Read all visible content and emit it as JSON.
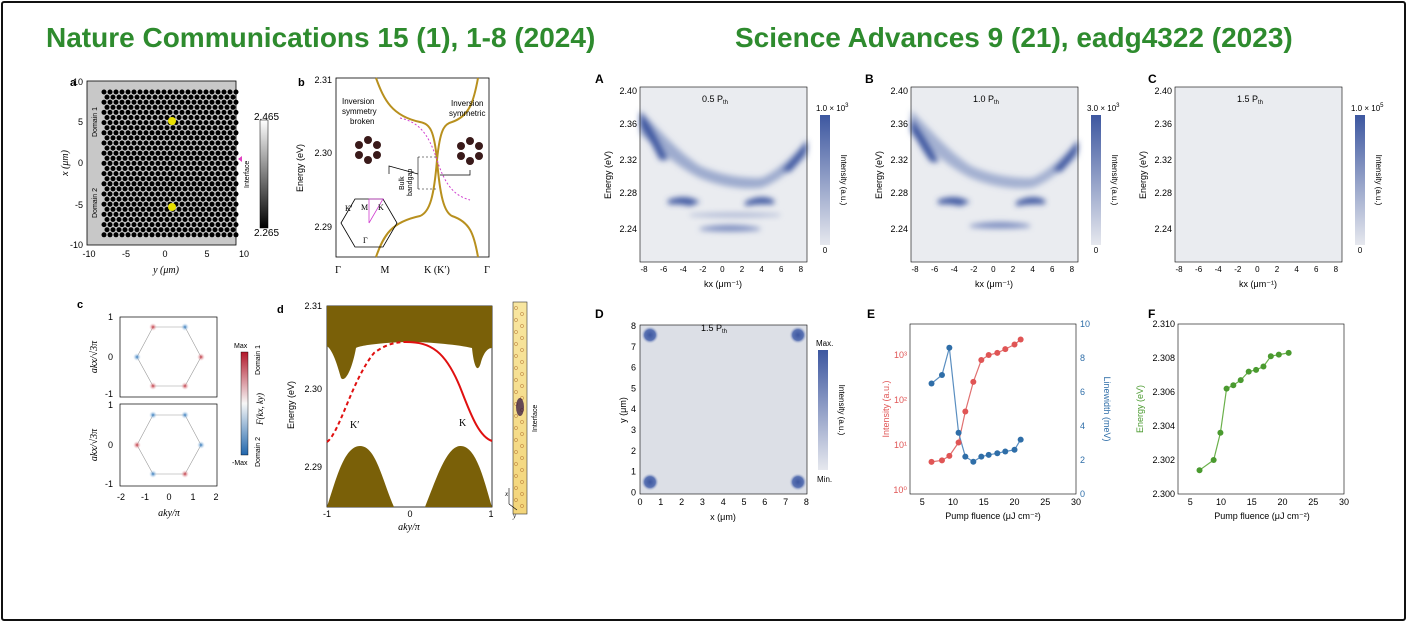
{
  "titles": {
    "left": "Nature Communications 15 (1), 1-8 (2024)",
    "right": "Science Advances 9 (21), eadg4322 (2023)"
  },
  "colors": {
    "title_green": "#2e8b2e",
    "band_gold": "#b8901e",
    "bulk_olive": "#7a6008",
    "edge_red": "#e01010",
    "map_blue": "#3d57a0",
    "intensity_red": "#e05555",
    "linewidth_blue": "#2f6ea8",
    "energy_green": "#4a9a2f"
  },
  "panel_a": {
    "label": "a",
    "xlabel": "y (μm)",
    "ylabel": "x (μm)",
    "xticks": [
      "-10",
      "-5",
      "0",
      "5",
      "10"
    ],
    "yticks": [
      "10",
      "5",
      "0",
      "-5",
      "-10"
    ],
    "domain1": "Domain 1",
    "domain2": "Domain 2",
    "interface": "Interface",
    "cbar_max": "2.465",
    "cbar_min": "2.265"
  },
  "panel_b": {
    "label": "b",
    "ylabel": "Energy (eV)",
    "yticks": [
      "2.31",
      "2.30",
      "2.29"
    ],
    "xticks": [
      "Γ",
      "M",
      "K (K′)",
      "Γ"
    ],
    "ann_broken": "Inversion symmetry broken",
    "ann_symmetric": "Inversion symmetric",
    "ann_bulk": "Bulk bandgap",
    "bz_labels": [
      "K′",
      "M",
      "K",
      "Γ"
    ]
  },
  "panel_c": {
    "label": "c",
    "ylabel_top": "akx/√3π",
    "ylabel_bottom": "akx/√3π",
    "xlabel": "aky/π",
    "xticks": [
      "-2",
      "-1",
      "0",
      "1",
      "2"
    ],
    "yticks": [
      "1",
      "0",
      "-1"
    ],
    "domain1": "Domain 1",
    "domain2": "Domain 2",
    "cbar_max": "Max",
    "cbar_min": "-Max",
    "cbar_label": "F(kx, ky)"
  },
  "panel_d": {
    "label": "d",
    "ylabel": "Energy (eV)",
    "xlabel": "aky/π",
    "yticks": [
      "2.31",
      "2.30",
      "2.29"
    ],
    "xticks": [
      "-1",
      "0",
      "1"
    ],
    "k_prime": "K′",
    "k": "K",
    "interface": "Interface",
    "axis_x": "x",
    "axis_y": "y"
  },
  "panel_A": {
    "label": "A",
    "inset": "0.5 P",
    "inset_sub": "th",
    "cbar_max": "1.0 × 10",
    "cbar_exp": "3",
    "cbar_min": "0"
  },
  "panel_B": {
    "label": "B",
    "inset": "1.0 P",
    "inset_sub": "th",
    "cbar_max": "3.0 × 10",
    "cbar_exp": "3",
    "cbar_min": "0"
  },
  "panel_C": {
    "label": "C",
    "inset": "1.5 P",
    "inset_sub": "th",
    "cbar_max": "1.0 × 10",
    "cbar_exp": "5",
    "cbar_min": "0"
  },
  "spectra_common": {
    "ylabel": "Energy (eV)",
    "xlabel": "kx (μm⁻¹)",
    "yticks": [
      "2.40",
      "2.36",
      "2.32",
      "2.28",
      "2.24"
    ],
    "xticks": [
      "-8",
      "-6",
      "-4",
      "-2",
      "0",
      "2",
      "4",
      "6",
      "8"
    ],
    "cbar_label": "Intensity (a.u.)"
  },
  "panel_D": {
    "label": "D",
    "inset": "1.5 P",
    "inset_sub": "th",
    "xlabel": "x (μm)",
    "ylabel": "y (μm)",
    "xticks": [
      "0",
      "1",
      "2",
      "3",
      "4",
      "5",
      "6",
      "7",
      "8"
    ],
    "yticks": [
      "8",
      "7",
      "6",
      "5",
      "4",
      "3",
      "2",
      "1",
      "0"
    ],
    "cbar_max": "Max.",
    "cbar_min": "Min.",
    "cbar_label": "Intensity (a.u.)"
  },
  "panel_E": {
    "label": "E",
    "xlabel": "Pump fluence (μJ cm⁻²)",
    "ylabel_left": "Intensity (a.u.)",
    "ylabel_right": "Linewidth (meV)",
    "xticks": [
      "5",
      "10",
      "15",
      "20",
      "25",
      "30"
    ],
    "left_ticks": [
      "10³",
      "10²",
      "10¹",
      "10⁰"
    ],
    "right_ticks": [
      "10",
      "8",
      "6",
      "4",
      "2",
      "0"
    ]
  },
  "panel_F": {
    "label": "F",
    "xlabel": "Pump fluence (μJ cm⁻²)",
    "ylabel": "Energy (eV)",
    "xticks": [
      "5",
      "10",
      "15",
      "20",
      "25",
      "30"
    ],
    "yticks": [
      "2.310",
      "2.308",
      "2.306",
      "2.304",
      "2.302",
      "2.300"
    ]
  },
  "chart_data": [
    {
      "type": "line",
      "panel": "E-intensity",
      "x": [
        6.5,
        8.2,
        9.4,
        10.9,
        12.0,
        13.3,
        14.6,
        15.8,
        17.2,
        18.5,
        20.0,
        21.0
      ],
      "values": [
        4.2,
        4.5,
        5.5,
        10,
        40,
        150,
        400,
        500,
        550,
        650,
        800,
        1000
      ],
      "ylim": [
        1,
        2000
      ],
      "xlim": [
        3,
        30
      ],
      "yscale": "log"
    },
    {
      "type": "line",
      "panel": "E-linewidth",
      "x": [
        6.5,
        8.2,
        9.4,
        10.9,
        12.0,
        13.3,
        14.6,
        15.8,
        17.2,
        18.5,
        20.0,
        21.0
      ],
      "values": [
        6.5,
        7.0,
        8.6,
        3.6,
        2.2,
        1.9,
        2.2,
        2.3,
        2.4,
        2.5,
        2.6,
        3.2
      ],
      "ylim": [
        0,
        10
      ],
      "xlim": [
        3,
        30
      ]
    },
    {
      "type": "line",
      "panel": "F",
      "x": [
        6.5,
        8.8,
        9.9,
        10.9,
        12.0,
        13.2,
        14.5,
        15.7,
        16.9,
        18.1,
        19.4,
        21.0
      ],
      "values": [
        2.3014,
        2.302,
        2.3036,
        2.3062,
        2.3064,
        2.3067,
        2.3072,
        2.3073,
        2.3075,
        2.3081,
        2.3082,
        2.3083
      ],
      "ylim": [
        2.3,
        2.31
      ],
      "xlim": [
        3,
        30
      ]
    }
  ]
}
